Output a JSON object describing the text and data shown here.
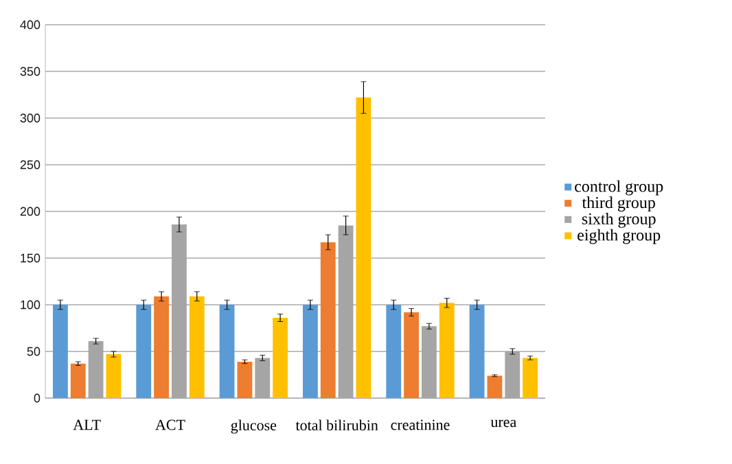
{
  "chart_data": {
    "type": "bar",
    "categories": [
      "ALT",
      "ACT",
      "glucose",
      "total bilirubin",
      "creatinine",
      "urea"
    ],
    "series": [
      {
        "name": "control group",
        "color": "#5b9bd5",
        "values": [
          100,
          100,
          100,
          100,
          100,
          100
        ],
        "errors": [
          5,
          5,
          5,
          5,
          5,
          5
        ]
      },
      {
        "name": "third group",
        "color": "#ed7d31",
        "values": [
          37,
          109,
          39,
          167,
          92,
          24
        ],
        "errors": [
          2,
          5,
          2,
          8,
          4,
          1
        ]
      },
      {
        "name": "sixth group",
        "color": "#a5a5a5",
        "values": [
          61,
          186,
          43,
          185,
          77,
          50
        ],
        "errors": [
          3,
          8,
          3,
          10,
          3,
          3
        ]
      },
      {
        "name": "eighth group",
        "color": "#ffc000",
        "values": [
          47,
          109,
          86,
          322,
          102,
          43
        ],
        "errors": [
          3,
          5,
          4,
          17,
          5,
          2
        ]
      }
    ],
    "ylim": [
      0,
      400
    ],
    "yticks": [
      0,
      50,
      100,
      150,
      200,
      250,
      300,
      350,
      400
    ],
    "grid": "y",
    "legend": "right"
  }
}
